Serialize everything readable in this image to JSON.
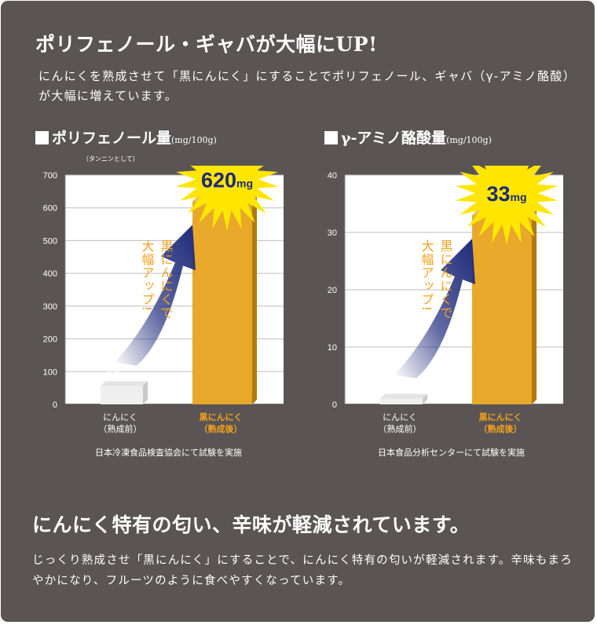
{
  "headline": "ポリフェノール・ギャバが大幅にUP!",
  "intro": "にんにくを熟成させて「黒にんにく」にすることでポリフェノール、ギャバ（γ-アミノ酪酸）が大幅に増えています。",
  "headline2": "にんにく特有の匂い、辛味が軽減されています。",
  "outro": "じっくり熟成させ「黒にんにく」にすることで、にんにく特有の匂いが軽減されます。辛味もまろやかになり、フルーツのように食べやすくなっています。",
  "colors": {
    "background": "#5a5554",
    "bar_gold": "#e8a82a",
    "bar_gray": "#efefef",
    "accent_text": "#f2a21e",
    "burst": "#ffe600",
    "arrow": "#1e2a7a"
  },
  "chart_data": [
    {
      "type": "bar",
      "title": "ポリフェノール量",
      "title_unit": "(mg/100g)",
      "subtitle": "（タンニンとして）",
      "categories": [
        "にんにく\n（熟成前）",
        "黒にんにく\n（熟成後）"
      ],
      "values": [
        56,
        620
      ],
      "value_labels": [
        {
          "num": "56",
          "unit": "mg"
        },
        {
          "num": "620",
          "unit": "mg"
        }
      ],
      "yticks": [
        0,
        100,
        200,
        300,
        400,
        500,
        600,
        700
      ],
      "ylim": [
        0,
        700
      ],
      "grid": true,
      "arrow_text_lines": [
        "黒にんにくで",
        "大幅アップ!"
      ],
      "note": "日本冷凍食品検査協会にて試験を実施"
    },
    {
      "type": "bar",
      "title": "γ-アミノ酪酸量",
      "title_unit": "(mg/100g)",
      "categories": [
        "にんにく\n（熟成前）",
        "黒にんにく\n（熟成後）"
      ],
      "values": [
        1,
        33
      ],
      "value_labels": [
        {
          "num": "1",
          "unit": "mg"
        },
        {
          "num": "33",
          "unit": "mg"
        }
      ],
      "yticks": [
        0,
        10,
        20,
        30,
        40
      ],
      "ylim": [
        0,
        40
      ],
      "grid": true,
      "arrow_text_lines": [
        "黒にんにくで",
        "大幅アップ!"
      ],
      "note": "日本食品分析センターにて試験を実施"
    }
  ]
}
